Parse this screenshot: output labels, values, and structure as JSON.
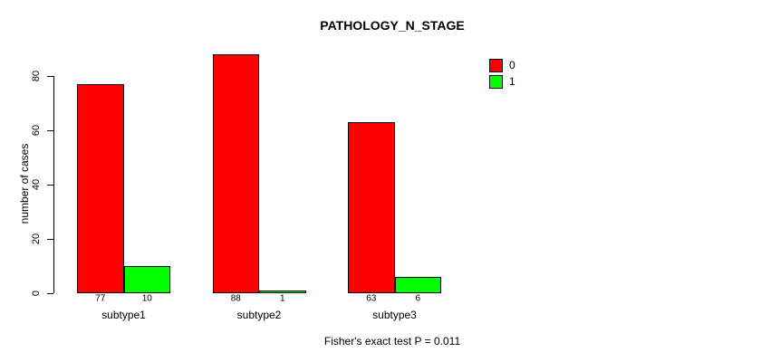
{
  "chart_data": {
    "type": "bar",
    "title": "PATHOLOGY_N_STAGE",
    "ylabel": "number of cases",
    "xlabel": "",
    "categories": [
      "subtype1",
      "subtype2",
      "subtype3"
    ],
    "series": [
      {
        "name": "0",
        "color": "#ff0000",
        "values": [
          77,
          88,
          63
        ]
      },
      {
        "name": "1",
        "color": "#00ff00",
        "values": [
          10,
          1,
          6
        ]
      }
    ],
    "yticks": [
      0,
      20,
      40,
      60,
      80
    ],
    "ylim": [
      0,
      88
    ],
    "grid": false,
    "legend_position": "top-right",
    "value_labels_shown": true,
    "annotation": "Fisher's exact test P = 0.011"
  }
}
